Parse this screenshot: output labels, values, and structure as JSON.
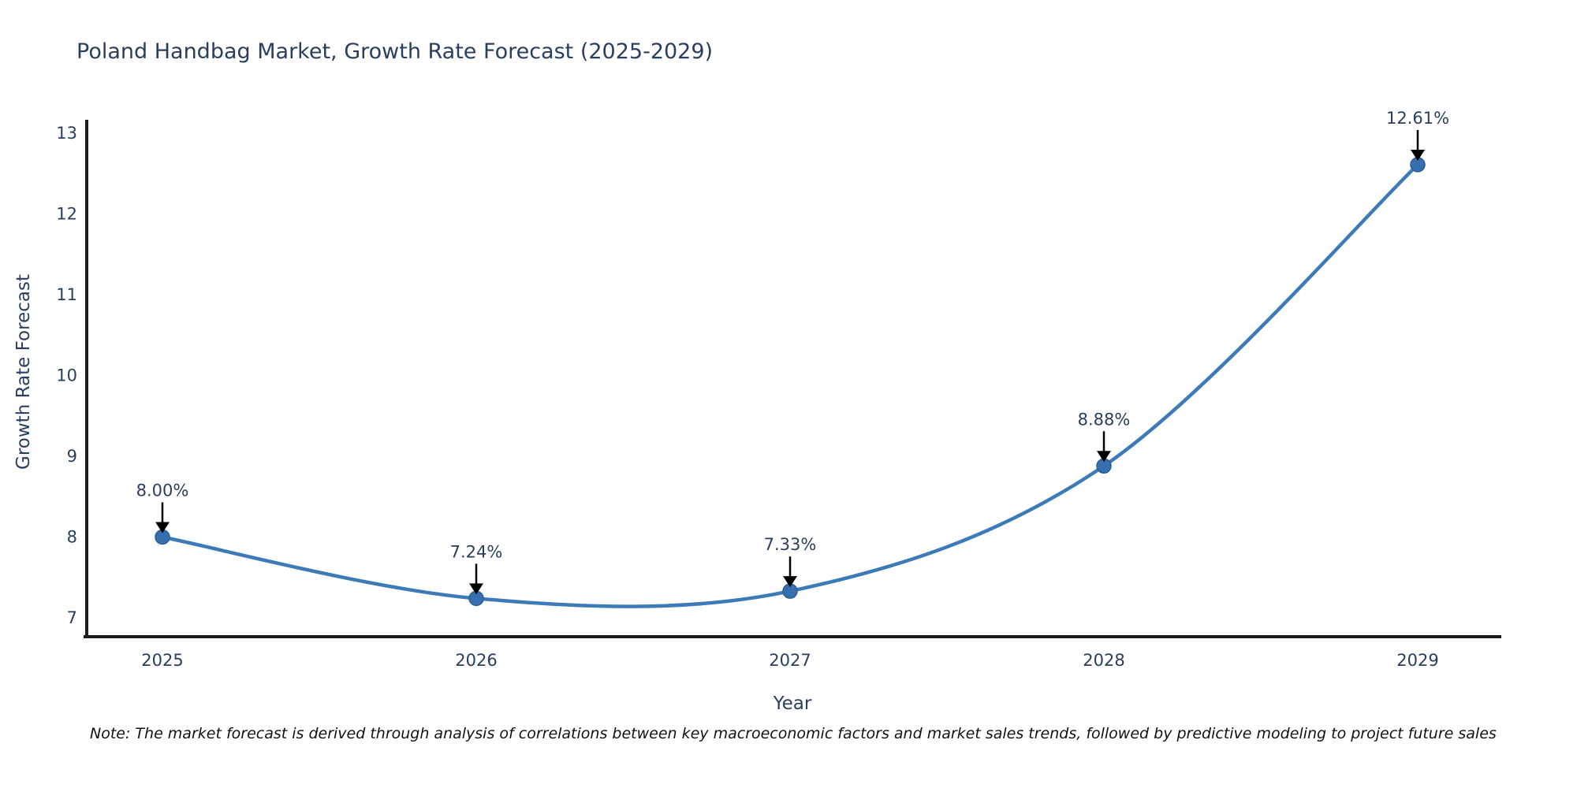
{
  "title": "Poland Handbag Market, Growth Rate Forecast (2025-2029)",
  "note": "Note: The market forecast is derived through analysis of correlations between key macroeconomic factors and market sales trends, followed by predictive modeling to project future sales",
  "chart_data": {
    "type": "line",
    "title": "Poland Handbag Market, Growth Rate Forecast (2025-2029)",
    "xlabel": "Year",
    "ylabel": "Growth Rate Forecast",
    "categories": [
      "2025",
      "2026",
      "2027",
      "2028",
      "2029"
    ],
    "values": [
      8.0,
      7.24,
      7.33,
      8.88,
      12.61
    ],
    "point_labels": [
      "8.00%",
      "7.24%",
      "7.33%",
      "8.88%",
      "12.61%"
    ],
    "yticks": [
      7,
      8,
      9,
      10,
      11,
      12,
      13
    ],
    "ylim": [
      6.75,
      13.17
    ],
    "line_shape": "spline",
    "grid": false,
    "legend": "none",
    "annotation_style": "value label with downward arrow to each point",
    "colors": {
      "line": "#3d7bb8",
      "marker_fill": "#366fad",
      "marker_edge": "#2a5d94",
      "axis_line": "#1c1c1c",
      "tick_text": "#2a3f5f",
      "annotation_text": "#2a3f5f",
      "arrow": "#000000",
      "background": "#ffffff"
    }
  }
}
